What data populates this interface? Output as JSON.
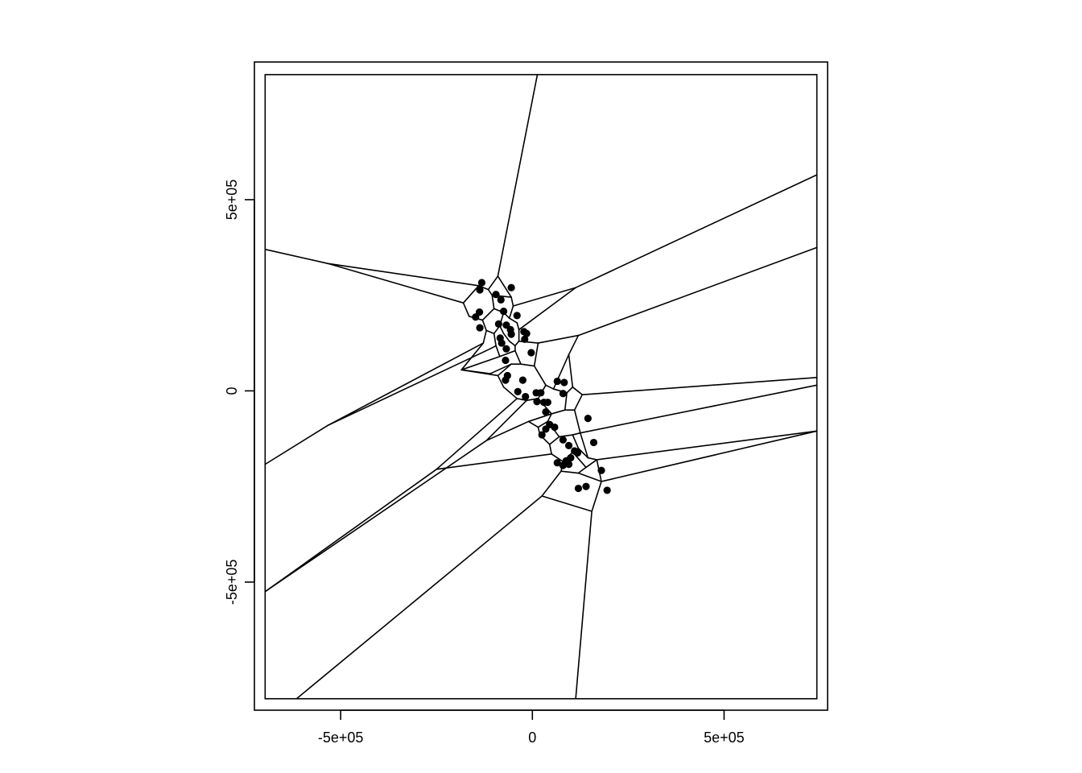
{
  "chart_data": {
    "type": "scatter",
    "title": "",
    "xlabel": "",
    "ylabel": "",
    "xlim": [
      -725000,
      770000
    ],
    "ylim": [
      -835000,
      860000
    ],
    "grid": false,
    "legend": "none",
    "x_ticks": [
      {
        "value": -500000,
        "label": "-5e+05"
      },
      {
        "value": 0,
        "label": "0"
      },
      {
        "value": 500000,
        "label": "5e+05"
      }
    ],
    "y_ticks": [
      {
        "value": 500000,
        "label": "5e+05"
      },
      {
        "value": 0,
        "label": "0"
      },
      {
        "value": -500000,
        "label": "-5e+05"
      }
    ],
    "bounding_rect": {
      "x": [
        -697000,
        742000
      ],
      "y": [
        -805000,
        827000
      ]
    },
    "points": [
      [
        -132000,
        283000
      ],
      [
        -137000,
        264000
      ],
      [
        -95000,
        252000
      ],
      [
        -82000,
        238000
      ],
      [
        -55000,
        270000
      ],
      [
        -75000,
        208000
      ],
      [
        -40000,
        197000
      ],
      [
        -138000,
        206000
      ],
      [
        -148000,
        193000
      ],
      [
        -137000,
        165000
      ],
      [
        -88000,
        175000
      ],
      [
        -68000,
        172000
      ],
      [
        -57000,
        160000
      ],
      [
        -22000,
        155000
      ],
      [
        -15000,
        150000
      ],
      [
        -55000,
        148000
      ],
      [
        -84000,
        138000
      ],
      [
        -20000,
        135000
      ],
      [
        -80000,
        125000
      ],
      [
        -68000,
        110000
      ],
      [
        -3000,
        100000
      ],
      [
        -70000,
        80000
      ],
      [
        -65000,
        40000
      ],
      [
        -70000,
        28000
      ],
      [
        -25000,
        28000
      ],
      [
        65000,
        25000
      ],
      [
        83000,
        22000
      ],
      [
        -38000,
        -2000
      ],
      [
        -18000,
        -15000
      ],
      [
        10000,
        -5000
      ],
      [
        22000,
        -5000
      ],
      [
        80000,
        -7000
      ],
      [
        12000,
        -28000
      ],
      [
        30000,
        -30000
      ],
      [
        40000,
        -30000
      ],
      [
        35000,
        -55000
      ],
      [
        145000,
        -72000
      ],
      [
        45000,
        -88000
      ],
      [
        58000,
        -95000
      ],
      [
        35000,
        -100000
      ],
      [
        25000,
        -115000
      ],
      [
        80000,
        -128000
      ],
      [
        160000,
        -135000
      ],
      [
        95000,
        -143000
      ],
      [
        110000,
        -157000
      ],
      [
        118000,
        -162000
      ],
      [
        100000,
        -175000
      ],
      [
        88000,
        -183000
      ],
      [
        65000,
        -188000
      ],
      [
        80000,
        -195000
      ],
      [
        95000,
        -192000
      ],
      [
        180000,
        -208000
      ],
      [
        140000,
        -250000
      ],
      [
        120000,
        -255000
      ],
      [
        195000,
        -260000
      ]
    ],
    "edges": [
      [
        [
          -697000,
          370000
        ],
        [
          -533000,
          333000
        ]
      ],
      [
        [
          -533000,
          333000
        ],
        [
          -140000,
          275000
        ]
      ],
      [
        [
          -533000,
          333000
        ],
        [
          -180000,
          230000
        ]
      ],
      [
        [
          -180000,
          230000
        ],
        [
          -140000,
          275000
        ]
      ],
      [
        [
          -140000,
          275000
        ],
        [
          -115000,
          265000
        ]
      ],
      [
        [
          -115000,
          265000
        ],
        [
          -90000,
          300000
        ]
      ],
      [
        [
          -90000,
          300000
        ],
        [
          13000,
          827000
        ]
      ],
      [
        [
          -90000,
          300000
        ],
        [
          -55000,
          245000
        ]
      ],
      [
        [
          -55000,
          245000
        ],
        [
          -105000,
          250000
        ]
      ],
      [
        [
          -105000,
          250000
        ],
        [
          -115000,
          265000
        ]
      ],
      [
        [
          -105000,
          250000
        ],
        [
          -100000,
          215000
        ]
      ],
      [
        [
          -55000,
          245000
        ],
        [
          -50000,
          222000
        ]
      ],
      [
        [
          -50000,
          222000
        ],
        [
          113000,
          270000
        ]
      ],
      [
        [
          113000,
          270000
        ],
        [
          742000,
          565000
        ]
      ],
      [
        [
          113000,
          270000
        ],
        [
          -35000,
          160000
        ]
      ],
      [
        [
          -180000,
          230000
        ],
        [
          -165000,
          195000
        ]
      ],
      [
        [
          -165000,
          195000
        ],
        [
          -130000,
          185000
        ]
      ],
      [
        [
          -130000,
          185000
        ],
        [
          -100000,
          215000
        ]
      ],
      [
        [
          -100000,
          215000
        ],
        [
          -75000,
          205000
        ]
      ],
      [
        [
          -75000,
          205000
        ],
        [
          -60000,
          190000
        ]
      ],
      [
        [
          -60000,
          190000
        ],
        [
          -50000,
          222000
        ]
      ],
      [
        [
          -130000,
          185000
        ],
        [
          -120000,
          158000
        ]
      ],
      [
        [
          -120000,
          158000
        ],
        [
          -100000,
          150000
        ]
      ],
      [
        [
          -100000,
          150000
        ],
        [
          -85000,
          170000
        ]
      ],
      [
        [
          -85000,
          170000
        ],
        [
          -75000,
          205000
        ]
      ],
      [
        [
          -60000,
          190000
        ],
        [
          -40000,
          178000
        ]
      ],
      [
        [
          -40000,
          178000
        ],
        [
          -35000,
          160000
        ]
      ],
      [
        [
          -35000,
          160000
        ],
        [
          -35000,
          130000
        ]
      ],
      [
        [
          -120000,
          158000
        ],
        [
          -128000,
          125000
        ]
      ],
      [
        [
          -128000,
          125000
        ],
        [
          -533000,
          -90000
        ]
      ],
      [
        [
          -533000,
          -90000
        ],
        [
          -697000,
          -192000
        ]
      ],
      [
        [
          -533000,
          -90000
        ],
        [
          -110000,
          110000
        ]
      ],
      [
        [
          -110000,
          110000
        ],
        [
          -95000,
          118000
        ]
      ],
      [
        [
          -95000,
          118000
        ],
        [
          -100000,
          150000
        ]
      ],
      [
        [
          -85000,
          170000
        ],
        [
          -75000,
          150000
        ]
      ],
      [
        [
          -75000,
          150000
        ],
        [
          -60000,
          130000
        ]
      ],
      [
        [
          -60000,
          130000
        ],
        [
          -45000,
          118000
        ]
      ],
      [
        [
          -45000,
          118000
        ],
        [
          -35000,
          130000
        ]
      ],
      [
        [
          -35000,
          130000
        ],
        [
          15000,
          125000
        ]
      ],
      [
        [
          15000,
          125000
        ],
        [
          120000,
          145000
        ]
      ],
      [
        [
          120000,
          145000
        ],
        [
          742000,
          375000
        ]
      ],
      [
        [
          120000,
          145000
        ],
        [
          95000,
          95000
        ]
      ],
      [
        [
          -95000,
          118000
        ],
        [
          -85000,
          90000
        ]
      ],
      [
        [
          -85000,
          90000
        ],
        [
          -45000,
          105000
        ]
      ],
      [
        [
          -45000,
          105000
        ],
        [
          -45000,
          118000
        ]
      ],
      [
        [
          -45000,
          105000
        ],
        [
          -30000,
          70000
        ]
      ],
      [
        [
          -85000,
          90000
        ],
        [
          -185000,
          55000
        ]
      ],
      [
        [
          -185000,
          55000
        ],
        [
          -128000,
          125000
        ]
      ],
      [
        [
          -185000,
          55000
        ],
        [
          -110000,
          45000
        ]
      ],
      [
        [
          -110000,
          45000
        ],
        [
          -55000,
          70000
        ]
      ],
      [
        [
          -55000,
          70000
        ],
        [
          -30000,
          70000
        ]
      ],
      [
        [
          -30000,
          70000
        ],
        [
          5000,
          65000
        ]
      ],
      [
        [
          5000,
          65000
        ],
        [
          15000,
          125000
        ]
      ],
      [
        [
          -185000,
          55000
        ],
        [
          -90000,
          40000
        ]
      ],
      [
        [
          -90000,
          40000
        ],
        [
          -55000,
          70000
        ]
      ],
      [
        [
          -90000,
          40000
        ],
        [
          -75000,
          10000
        ]
      ],
      [
        [
          -75000,
          10000
        ],
        [
          -40000,
          -20000
        ]
      ],
      [
        [
          -40000,
          -20000
        ],
        [
          -250000,
          -205000
        ]
      ],
      [
        [
          -250000,
          -205000
        ],
        [
          -697000,
          -525000
        ]
      ],
      [
        [
          5000,
          65000
        ],
        [
          35000,
          15000
        ]
      ],
      [
        [
          35000,
          15000
        ],
        [
          55000,
          5000
        ]
      ],
      [
        [
          55000,
          5000
        ],
        [
          95000,
          95000
        ]
      ],
      [
        [
          35000,
          15000
        ],
        [
          15000,
          -20000
        ]
      ],
      [
        [
          15000,
          -20000
        ],
        [
          -15000,
          -25000
        ]
      ],
      [
        [
          -15000,
          -25000
        ],
        [
          -40000,
          -20000
        ]
      ],
      [
        [
          -15000,
          -25000
        ],
        [
          -120000,
          -130000
        ]
      ],
      [
        [
          -120000,
          -130000
        ],
        [
          -697000,
          -525000
        ]
      ],
      [
        [
          55000,
          5000
        ],
        [
          90000,
          -5000
        ]
      ],
      [
        [
          90000,
          -5000
        ],
        [
          105000,
          10000
        ]
      ],
      [
        [
          105000,
          10000
        ],
        [
          95000,
          95000
        ]
      ],
      [
        [
          90000,
          -5000
        ],
        [
          85000,
          -50000
        ]
      ],
      [
        [
          85000,
          -50000
        ],
        [
          50000,
          -60000
        ]
      ],
      [
        [
          50000,
          -60000
        ],
        [
          15000,
          -20000
        ]
      ],
      [
        [
          105000,
          10000
        ],
        [
          130000,
          -10000
        ]
      ],
      [
        [
          130000,
          -10000
        ],
        [
          742000,
          35000
        ]
      ],
      [
        [
          130000,
          -10000
        ],
        [
          110000,
          -50000
        ]
      ],
      [
        [
          110000,
          -50000
        ],
        [
          85000,
          -50000
        ]
      ],
      [
        [
          110000,
          -50000
        ],
        [
          125000,
          -110000
        ]
      ],
      [
        [
          125000,
          -110000
        ],
        [
          742000,
          15000
        ]
      ],
      [
        [
          50000,
          -60000
        ],
        [
          -10000,
          -80000
        ]
      ],
      [
        [
          -10000,
          -80000
        ],
        [
          -120000,
          -130000
        ]
      ],
      [
        [
          -10000,
          -80000
        ],
        [
          15000,
          -95000
        ]
      ],
      [
        [
          15000,
          -95000
        ],
        [
          40000,
          -80000
        ]
      ],
      [
        [
          40000,
          -80000
        ],
        [
          50000,
          -60000
        ]
      ],
      [
        [
          15000,
          -95000
        ],
        [
          20000,
          -115000
        ]
      ],
      [
        [
          20000,
          -115000
        ],
        [
          45000,
          -140000
        ]
      ],
      [
        [
          45000,
          -140000
        ],
        [
          70000,
          -120000
        ]
      ],
      [
        [
          70000,
          -120000
        ],
        [
          40000,
          -80000
        ]
      ],
      [
        [
          70000,
          -120000
        ],
        [
          105000,
          -115000
        ]
      ],
      [
        [
          105000,
          -115000
        ],
        [
          125000,
          -110000
        ]
      ],
      [
        [
          105000,
          -115000
        ],
        [
          120000,
          -150000
        ]
      ],
      [
        [
          120000,
          -150000
        ],
        [
          145000,
          -175000
        ]
      ],
      [
        [
          145000,
          -175000
        ],
        [
          125000,
          -110000
        ]
      ],
      [
        [
          145000,
          -175000
        ],
        [
          168000,
          -180000
        ]
      ],
      [
        [
          168000,
          -180000
        ],
        [
          742000,
          -105000
        ]
      ],
      [
        [
          168000,
          -180000
        ],
        [
          180000,
          -237000
        ]
      ],
      [
        [
          180000,
          -237000
        ],
        [
          742000,
          -105000
        ]
      ],
      [
        [
          45000,
          -140000
        ],
        [
          50000,
          -165000
        ]
      ],
      [
        [
          50000,
          -165000
        ],
        [
          -250000,
          -205000
        ]
      ],
      [
        [
          50000,
          -165000
        ],
        [
          80000,
          -185000
        ]
      ],
      [
        [
          80000,
          -185000
        ],
        [
          105000,
          -160000
        ]
      ],
      [
        [
          105000,
          -160000
        ],
        [
          120000,
          -150000
        ]
      ],
      [
        [
          80000,
          -185000
        ],
        [
          75000,
          -210000
        ]
      ],
      [
        [
          75000,
          -210000
        ],
        [
          25000,
          -275000
        ]
      ],
      [
        [
          25000,
          -275000
        ],
        [
          -615000,
          -805000
        ]
      ],
      [
        [
          75000,
          -210000
        ],
        [
          120000,
          -215000
        ]
      ],
      [
        [
          120000,
          -215000
        ],
        [
          140000,
          -200000
        ]
      ],
      [
        [
          140000,
          -200000
        ],
        [
          105000,
          -160000
        ]
      ],
      [
        [
          140000,
          -200000
        ],
        [
          168000,
          -180000
        ]
      ],
      [
        [
          120000,
          -215000
        ],
        [
          180000,
          -237000
        ]
      ],
      [
        [
          180000,
          -237000
        ],
        [
          155000,
          -315000
        ]
      ],
      [
        [
          155000,
          -315000
        ],
        [
          113000,
          -805000
        ]
      ],
      [
        [
          155000,
          -315000
        ],
        [
          25000,
          -275000
        ]
      ]
    ]
  }
}
